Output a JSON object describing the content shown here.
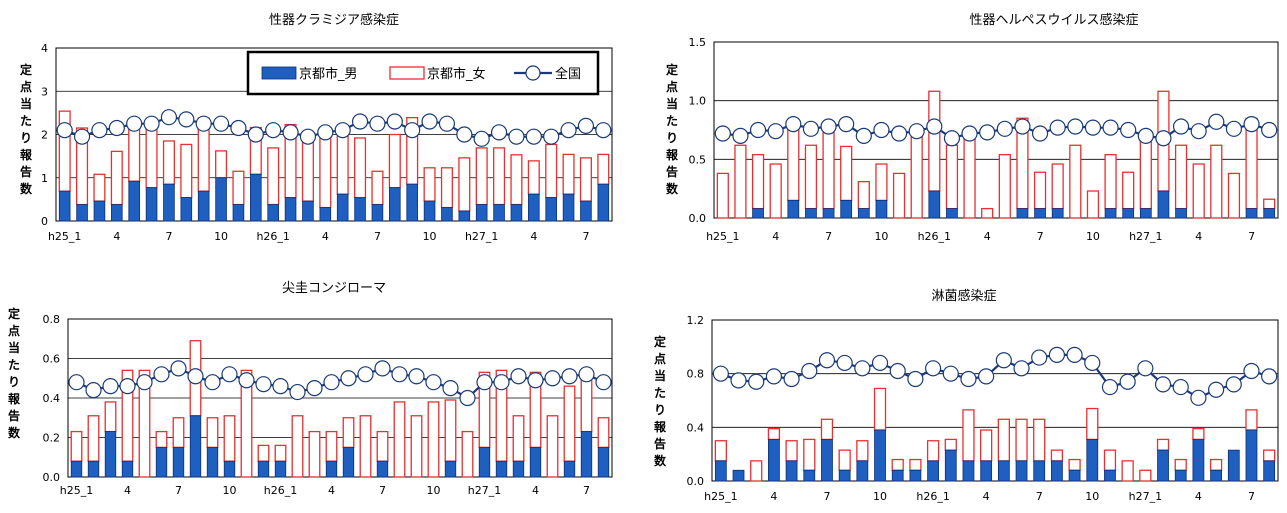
{
  "legend": {
    "male": "京都市_男",
    "female": "京都市_女",
    "national": "全国"
  },
  "colors": {
    "male_fill": "#1f5fbf",
    "female_edge": "#e83030",
    "national_line": "#1a3a7a"
  },
  "ylabel": "定点当たり報告数",
  "x_labels": [
    "h25_1",
    "4",
    "7",
    "10",
    "h26_1",
    "4",
    "7",
    "10",
    "h27_1",
    "4",
    "7"
  ],
  "chart_data": [
    {
      "type": "bar",
      "title": "性器クラミジア感染症",
      "ylim": [
        0,
        4
      ],
      "yticks": [
        0,
        1,
        2,
        3,
        4
      ],
      "grid": true,
      "legend_position": "top-right",
      "series": [
        {
          "name": "京都市_男",
          "values": [
            0.69,
            0.38,
            0.46,
            0.38,
            0.92,
            0.77,
            0.85,
            0.54,
            0.69,
            1.0,
            0.38,
            1.08,
            0.38,
            0.54,
            0.46,
            0.31,
            0.62,
            0.54,
            0.38,
            0.77,
            0.85,
            0.46,
            0.31,
            0.23,
            0.38,
            0.38,
            0.38,
            0.62,
            0.54,
            0.62,
            0.46,
            0.85
          ]
        },
        {
          "name": "京都市_女",
          "values": [
            1.85,
            1.77,
            0.62,
            1.23,
            1.31,
            1.46,
            1.0,
            1.23,
            1.69,
            0.62,
            0.77,
            1.08,
            1.31,
            1.69,
            1.46,
            1.62,
            1.38,
            1.38,
            0.77,
            1.23,
            1.54,
            0.77,
            0.92,
            1.23,
            1.31,
            1.31,
            1.15,
            0.77,
            1.23,
            0.92,
            1.0,
            0.69
          ]
        },
        {
          "name": "全国",
          "values": [
            2.1,
            1.95,
            2.1,
            2.15,
            2.25,
            2.25,
            2.4,
            2.35,
            2.25,
            2.25,
            2.15,
            2.0,
            2.1,
            2.05,
            1.95,
            2.05,
            2.1,
            2.3,
            2.25,
            2.3,
            2.1,
            2.3,
            2.25,
            2.0,
            1.9,
            2.05,
            1.95,
            1.95,
            1.95,
            2.1,
            2.2,
            2.1
          ]
        }
      ]
    },
    {
      "type": "bar",
      "title": "性器ヘルペスウイルス感染症",
      "ylim": [
        0,
        1.5
      ],
      "yticks": [
        "0.0",
        "0.5",
        "1.0",
        "1.5"
      ],
      "grid": true,
      "series": [
        {
          "name": "京都市_男",
          "values": [
            0,
            0,
            0.08,
            0,
            0.15,
            0.08,
            0.08,
            0.15,
            0.08,
            0.15,
            0,
            0,
            0.23,
            0.08,
            0,
            0,
            0,
            0.08,
            0.08,
            0.08,
            0,
            0,
            0.08,
            0.08,
            0.08,
            0.23,
            0.08,
            0,
            0,
            0,
            0.08,
            0.08
          ]
        },
        {
          "name": "京都市_女",
          "values": [
            0.38,
            0.62,
            0.46,
            0.46,
            0.62,
            0.54,
            0.69,
            0.46,
            0.23,
            0.31,
            0.38,
            0.69,
            0.85,
            0.54,
            0.69,
            0.08,
            0.54,
            0.77,
            0.31,
            0.38,
            0.62,
            0.23,
            0.46,
            0.31,
            0.62,
            0.85,
            0.54,
            0.46,
            0.62,
            0.38,
            0.77,
            0.08
          ]
        },
        {
          "name": "全国",
          "values": [
            0.72,
            0.7,
            0.75,
            0.74,
            0.8,
            0.76,
            0.78,
            0.8,
            0.7,
            0.75,
            0.72,
            0.74,
            0.78,
            0.68,
            0.72,
            0.73,
            0.76,
            0.78,
            0.72,
            0.77,
            0.78,
            0.77,
            0.77,
            0.75,
            0.7,
            0.68,
            0.78,
            0.74,
            0.82,
            0.76,
            0.8,
            0.75
          ]
        }
      ]
    },
    {
      "type": "bar",
      "title": "尖圭コンジローマ",
      "ylim": [
        0,
        0.8
      ],
      "yticks": [
        "0.0",
        "0.2",
        "0.4",
        "0.6",
        "0.8"
      ],
      "grid": true,
      "series": [
        {
          "name": "京都市_男",
          "values": [
            0.08,
            0.08,
            0.23,
            0.08,
            0,
            0.15,
            0.15,
            0.31,
            0.15,
            0.08,
            0,
            0.08,
            0.08,
            0,
            0,
            0.08,
            0.15,
            0,
            0.08,
            0,
            0,
            0,
            0.08,
            0,
            0.15,
            0.08,
            0.08,
            0.15,
            0,
            0.08,
            0.23,
            0.15
          ]
        },
        {
          "name": "京都市_女",
          "values": [
            0.15,
            0.23,
            0.15,
            0.46,
            0.54,
            0.08,
            0.15,
            0.38,
            0.15,
            0.23,
            0.54,
            0.08,
            0.08,
            0.31,
            0.23,
            0.15,
            0.15,
            0.31,
            0.15,
            0.38,
            0.31,
            0.38,
            0.31,
            0.23,
            0.38,
            0.46,
            0.23,
            0.38,
            0.31,
            0.38,
            0.31,
            0.15
          ]
        },
        {
          "name": "全国",
          "values": [
            0.48,
            0.44,
            0.46,
            0.46,
            0.48,
            0.52,
            0.55,
            0.51,
            0.48,
            0.52,
            0.49,
            0.47,
            0.46,
            0.43,
            0.45,
            0.48,
            0.5,
            0.52,
            0.55,
            0.52,
            0.51,
            0.48,
            0.45,
            0.4,
            0.48,
            0.48,
            0.51,
            0.49,
            0.5,
            0.51,
            0.52,
            0.48
          ]
        }
      ]
    },
    {
      "type": "bar",
      "title": "淋菌感染症",
      "ylim": [
        0,
        1.2
      ],
      "yticks": [
        "0.0",
        "0.4",
        "0.8",
        "1.2"
      ],
      "grid": true,
      "series": [
        {
          "name": "京都市_男",
          "values": [
            0.15,
            0.08,
            0,
            0.31,
            0.15,
            0.08,
            0.31,
            0.08,
            0.15,
            0.38,
            0.08,
            0.08,
            0.15,
            0.23,
            0.15,
            0.15,
            0.15,
            0.15,
            0.15,
            0.15,
            0.08,
            0.31,
            0.08,
            0,
            0,
            0.23,
            0.08,
            0.31,
            0.08,
            0.23,
            0.38,
            0.15
          ]
        },
        {
          "name": "京都市_女",
          "values": [
            0.15,
            0,
            0.15,
            0.08,
            0.15,
            0.23,
            0.15,
            0.15,
            0.15,
            0.31,
            0.08,
            0.08,
            0.15,
            0.08,
            0.38,
            0.23,
            0.31,
            0.31,
            0.31,
            0.08,
            0.08,
            0.23,
            0.15,
            0.15,
            0.08,
            0.08,
            0.08,
            0.08,
            0.08,
            0,
            0.15,
            0.08
          ]
        },
        {
          "name": "全国",
          "values": [
            0.8,
            0.75,
            0.74,
            0.78,
            0.76,
            0.82,
            0.9,
            0.88,
            0.84,
            0.88,
            0.82,
            0.76,
            0.84,
            0.8,
            0.76,
            0.78,
            0.9,
            0.84,
            0.92,
            0.94,
            0.94,
            0.88,
            0.7,
            0.74,
            0.84,
            0.72,
            0.7,
            0.62,
            0.68,
            0.72,
            0.82,
            0.78
          ]
        }
      ]
    }
  ]
}
